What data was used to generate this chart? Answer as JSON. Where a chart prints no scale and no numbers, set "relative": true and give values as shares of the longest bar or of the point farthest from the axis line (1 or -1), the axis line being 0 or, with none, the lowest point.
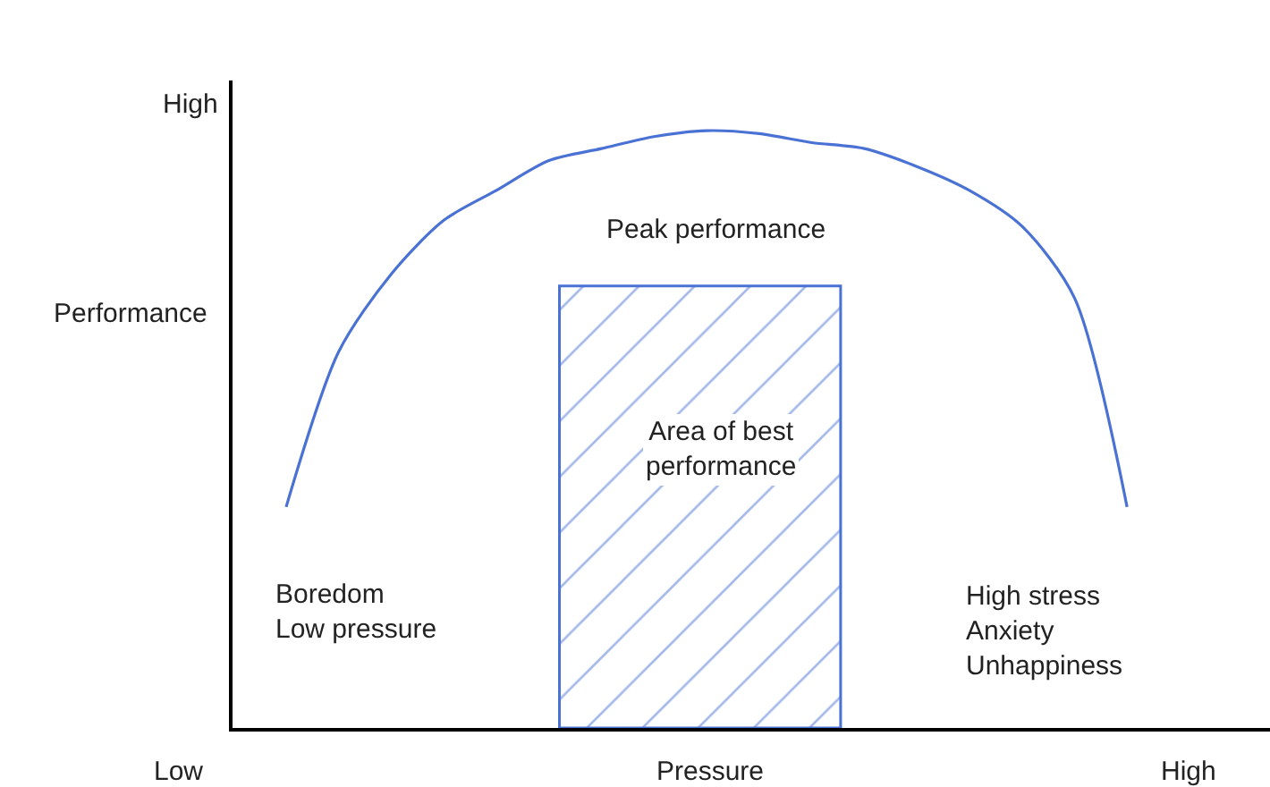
{
  "chart_data": {
    "type": "line",
    "relative": true,
    "xlabel": "Pressure",
    "ylabel": "Performance",
    "categories": [
      null,
      null,
      null,
      null,
      null,
      null,
      null,
      null,
      null,
      null,
      null,
      null,
      null,
      null,
      null,
      null,
      null
    ],
    "series": [
      {
        "color": "#4a72d4",
        "values": [
          0.37,
          0.63,
          0.76,
          0.85,
          0.9,
          0.95,
          0.97,
          0.99,
          1,
          0.995,
          0.98,
          0.97,
          0.94,
          0.9,
          0.84,
          0.72,
          0.37
        ]
      }
    ],
    "marker": "none",
    "line_style": "solid",
    "annotations": [
      "High",
      "Area of best\nperformance",
      "Peak performance",
      "Boredom\nLow pressure",
      "High stress\nAnxiety\nUnhappiness",
      "Low",
      "High"
    ]
  }
}
